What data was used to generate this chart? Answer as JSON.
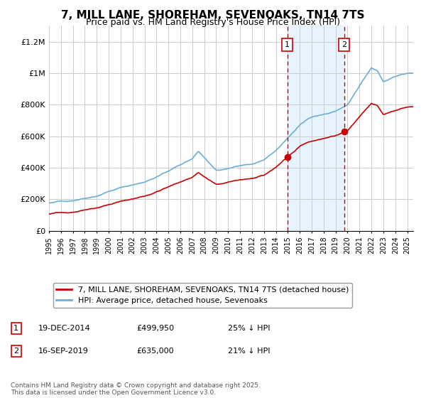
{
  "title": "7, MILL LANE, SHOREHAM, SEVENOAKS, TN14 7TS",
  "subtitle": "Price paid vs. HM Land Registry's House Price Index (HPI)",
  "ylabel_ticks": [
    "£0",
    "£200K",
    "£400K",
    "£600K",
    "£800K",
    "£1M",
    "£1.2M"
  ],
  "ytick_values": [
    0,
    200000,
    400000,
    600000,
    800000,
    1000000,
    1200000
  ],
  "ylim": [
    0,
    1300000
  ],
  "xlim_start": 1995,
  "xlim_end": 2025.5,
  "sale1_date": 2014.96,
  "sale1_price": 499950,
  "sale1_label": "1",
  "sale1_date_str": "19-DEC-2014",
  "sale1_price_str": "£499,950",
  "sale1_hpi_str": "25% ↓ HPI",
  "sale2_date": 2019.71,
  "sale2_price": 635000,
  "sale2_label": "2",
  "sale2_date_str": "16-SEP-2019",
  "sale2_price_str": "£635,000",
  "sale2_hpi_str": "21% ↓ HPI",
  "hpi_color": "#6baed6",
  "price_color": "#cc0000",
  "shading_color": "#ddeeff",
  "grid_color": "#cccccc",
  "sale_line_color": "#cc0000",
  "legend_label_price": "7, MILL LANE, SHOREHAM, SEVENOAKS, TN14 7TS (detached house)",
  "legend_label_hpi": "HPI: Average price, detached house, Sevenoaks",
  "footnote": "Contains HM Land Registry data © Crown copyright and database right 2025.\nThis data is licensed under the Open Government Licence v3.0.",
  "title_fontsize": 11,
  "subtitle_fontsize": 9,
  "axis_fontsize": 8,
  "legend_fontsize": 8
}
